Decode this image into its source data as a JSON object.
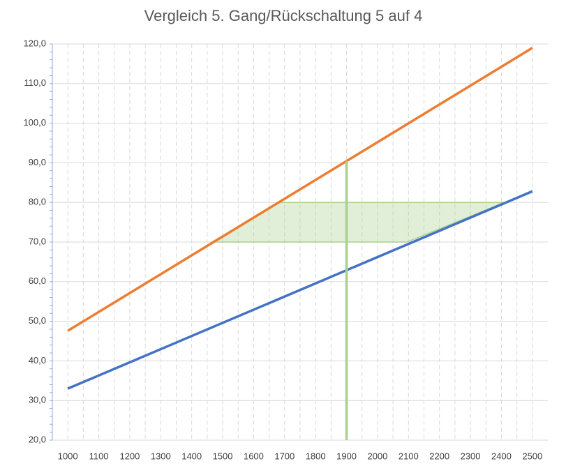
{
  "chart_data": {
    "type": "line",
    "title": "Vergleich 5. Gang/Rückschaltung 5 auf 4",
    "xlim": [
      950,
      2550
    ],
    "xticks": [
      1000,
      1100,
      1200,
      1300,
      1400,
      1500,
      1600,
      1700,
      1800,
      1900,
      2000,
      2100,
      2200,
      2300,
      2400,
      2500
    ],
    "xminor_step": 50,
    "ylim": [
      20,
      120
    ],
    "yticks": [
      {
        "value": 20,
        "label": "20,0"
      },
      {
        "value": 30,
        "label": "30,0"
      },
      {
        "value": 40,
        "label": "40,0"
      },
      {
        "value": 50,
        "label": "50,0"
      },
      {
        "value": 60,
        "label": "60,0"
      },
      {
        "value": 70,
        "label": "70,0"
      },
      {
        "value": 80,
        "label": "80,0"
      },
      {
        "value": 90,
        "label": "90,0"
      },
      {
        "value": 100,
        "label": "100,0"
      },
      {
        "value": 110,
        "label": "110,0"
      },
      {
        "value": 120,
        "label": "120,0"
      }
    ],
    "yminor_step": 2,
    "grid": true,
    "series": [
      {
        "type": "area",
        "color": "#a9d18e",
        "x": [
          1465,
          1685,
          2410,
          2095
        ],
        "values": [
          70,
          80,
          80,
          70
        ]
      },
      {
        "type": "line",
        "color": "#ed7d31",
        "x": [
          1000,
          2500
        ],
        "values": [
          47.6,
          119
        ]
      },
      {
        "type": "line",
        "color": "#4472c4",
        "x": [
          1000,
          2500
        ],
        "values": [
          33,
          82.8
        ]
      },
      {
        "type": "line",
        "color": "#a9d18e",
        "x": [
          1900,
          1900
        ],
        "values": [
          90.5,
          20
        ]
      }
    ]
  }
}
